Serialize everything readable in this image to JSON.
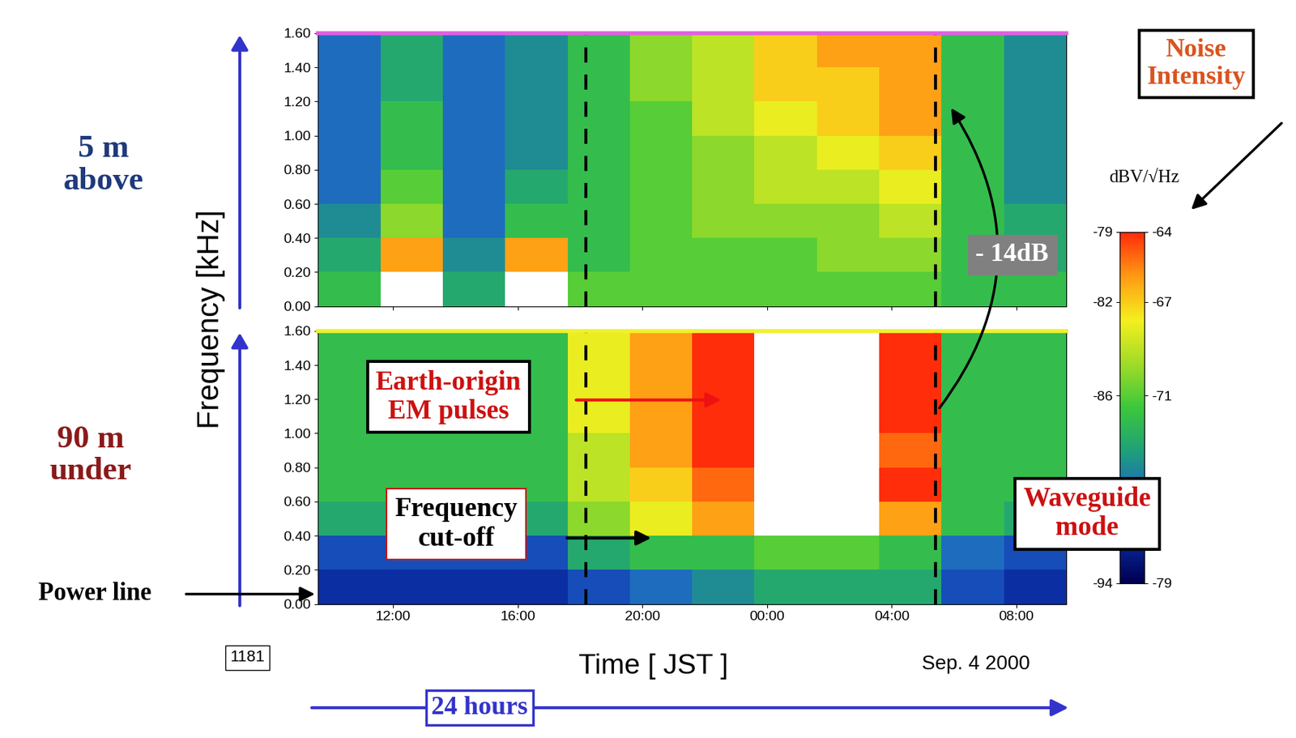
{
  "chart_data": [
    {
      "type": "heatmap",
      "panel_label": "5 m\nabove",
      "tick_labels": "y",
      "time_edges": [
        9.6,
        11.6,
        13.6,
        15.6,
        17.6,
        19.6,
        21.6,
        23.6,
        25.6,
        27.6,
        29.6,
        31.6,
        33.6
      ],
      "freq_edges": [
        0.0,
        0.2,
        0.4,
        0.6,
        0.8,
        1.0,
        1.2,
        1.4,
        1.6
      ],
      "cells": [
        [
          -72,
          -63,
          -73,
          -62,
          -71,
          -71,
          -71,
          -71,
          -71,
          -71,
          -72,
          -72
        ],
        [
          -73,
          -66,
          -74,
          -66,
          -72,
          -71,
          -71,
          -71,
          -70,
          -70,
          -72,
          -73
        ],
        [
          -74,
          -70,
          -75,
          -72,
          -72,
          -71,
          -70,
          -70,
          -70,
          -69,
          -72,
          -73
        ],
        [
          -75,
          -71,
          -75,
          -73,
          -72,
          -71,
          -70,
          -69,
          -69,
          -68,
          -72,
          -74
        ],
        [
          -75,
          -72,
          -75,
          -74,
          -72,
          -71,
          -70,
          -69,
          -68,
          -67,
          -72,
          -74
        ],
        [
          -75,
          -72,
          -75,
          -74,
          -72,
          -71,
          -69,
          -68,
          -67,
          -66,
          -72,
          -74
        ],
        [
          -75,
          -73,
          -75,
          -74,
          -72,
          -70,
          -69,
          -67,
          -67,
          -66,
          -72,
          -74
        ],
        [
          -75,
          -73,
          -75,
          -74,
          -72,
          -70,
          -69,
          -67,
          -66,
          -66,
          -72,
          -74
        ]
      ],
      "xlim": [
        9.6,
        33.6
      ],
      "xticks": [
        {
          "value": 12,
          "label": "12:00"
        },
        {
          "value": 16,
          "label": "16:00"
        },
        {
          "value": 20,
          "label": "20:00"
        },
        {
          "value": 24,
          "label": "00:00"
        },
        {
          "value": 28,
          "label": "04:00"
        },
        {
          "value": 32,
          "label": "08:00"
        }
      ],
      "ylim": [
        0.0,
        1.6
      ],
      "yticks": [
        {
          "value": 0.0,
          "label": "0.00"
        },
        {
          "value": 0.2,
          "label": "0.20"
        },
        {
          "value": 0.4,
          "label": "0.40"
        },
        {
          "value": 0.6,
          "label": "0.60"
        },
        {
          "value": 0.8,
          "label": "0.80"
        },
        {
          "value": 1.0,
          "label": "1.00"
        },
        {
          "value": 1.2,
          "label": "1.20"
        },
        {
          "value": 1.4,
          "label": "1.40"
        },
        {
          "value": 1.6,
          "label": "1.60"
        }
      ],
      "markers_x": [
        18.2,
        29.4
      ]
    },
    {
      "type": "heatmap",
      "panel_label": "90 m\nunder",
      "time_edges": [
        9.6,
        11.6,
        13.6,
        15.6,
        17.6,
        19.6,
        21.6,
        23.6,
        25.6,
        27.6,
        29.6,
        31.6,
        33.6
      ],
      "freq_edges": [
        0.0,
        0.2,
        0.4,
        0.6,
        0.8,
        1.0,
        1.2,
        1.4,
        1.6
      ],
      "cells": [
        [
          -77,
          -77,
          -77,
          -77,
          -76,
          -75,
          -74,
          -73,
          -73,
          -73,
          -76,
          -77
        ],
        [
          -76,
          -76,
          -76,
          -76,
          -73,
          -72,
          -72,
          -71,
          -71,
          -72,
          -75,
          -76
        ],
        [
          -73,
          -73,
          -73,
          -73,
          -70,
          -68,
          -66,
          -63,
          -63,
          -66,
          -72,
          -73
        ],
        [
          -72,
          -72,
          -72,
          -72,
          -69,
          -67,
          -65,
          -62,
          -62,
          -64,
          -72,
          -72
        ],
        [
          -72,
          -72,
          -72,
          -72,
          -69,
          -66,
          -64,
          -62,
          -62,
          -65,
          -72,
          -72
        ],
        [
          -72,
          -72,
          -72,
          -72,
          -68,
          -66,
          -64,
          -62,
          -62,
          -64,
          -72,
          -72
        ],
        [
          -72,
          -72,
          -72,
          -72,
          -68,
          -66,
          -64,
          -62,
          -62,
          -64,
          -72,
          -72
        ],
        [
          -72,
          -72,
          -72,
          -72,
          -68,
          -66,
          -64,
          -62,
          -62,
          -64,
          -72,
          -72
        ]
      ],
      "xlim": [
        9.6,
        33.6
      ],
      "xticks": [
        {
          "value": 12,
          "label": "12:00"
        },
        {
          "value": 16,
          "label": "16:00"
        },
        {
          "value": 20,
          "label": "20:00"
        },
        {
          "value": 24,
          "label": "00:00"
        },
        {
          "value": 28,
          "label": "04:00"
        },
        {
          "value": 32,
          "label": "08:00"
        }
      ],
      "ylim": [
        0.0,
        1.6
      ],
      "yticks": [
        {
          "value": 0.0,
          "label": "0.00"
        },
        {
          "value": 0.2,
          "label": "0.20"
        },
        {
          "value": 0.4,
          "label": "0.40"
        },
        {
          "value": 0.6,
          "label": "0.60"
        },
        {
          "value": 0.8,
          "label": "0.80"
        },
        {
          "value": 1.0,
          "label": "1.00"
        },
        {
          "value": 1.2,
          "label": "1.20"
        },
        {
          "value": 1.4,
          "label": "1.40"
        },
        {
          "value": 1.6,
          "label": "1.60"
        }
      ],
      "markers_x": [
        18.2,
        29.4
      ]
    }
  ],
  "y_label": "Frequency [kHz]",
  "x_label": "Time [ JST ]",
  "date": "Sep. 4 2000",
  "id": "1181",
  "duration": "24 hours",
  "colorbar": {
    "label": "dBV/√Hz",
    "range": [
      -79,
      -64
    ],
    "ticks": [
      -64,
      -67,
      -71,
      -79
    ],
    "range_alt": [
      -94,
      -79
    ],
    "ticks_alt": [
      -79,
      -82,
      -86,
      -94
    ]
  },
  "annotations": {
    "noise": "Noise\nIntensity",
    "pulses": "Earth-origin\nEM pulses",
    "cutoff": "Frequency\ncut-off",
    "power": "Power line",
    "waveguide": "Waveguide\nmode",
    "difference": "- 14dB"
  }
}
